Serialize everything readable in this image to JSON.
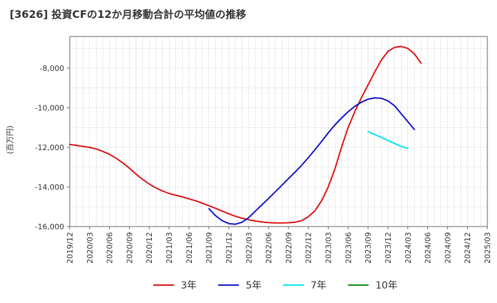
{
  "title": "[3626]  投資CFの12か月移動合計の平均値の推移",
  "chart_data": {
    "type": "line",
    "ylabel": "(百万円)",
    "xlabel": "",
    "ylim": [
      -16000,
      -6400
    ],
    "yticks": [
      -8000,
      -10000,
      -12000,
      -14000,
      -16000
    ],
    "ytick_labels": [
      "-8,000",
      "-10,000",
      "-12,000",
      "-14,000",
      "-16,000"
    ],
    "x_categories": [
      "2019/12",
      "2020/03",
      "2020/06",
      "2020/09",
      "2020/12",
      "2021/03",
      "2021/06",
      "2021/09",
      "2021/12",
      "2022/03",
      "2022/06",
      "2022/09",
      "2022/12",
      "2023/03",
      "2023/06",
      "2023/09",
      "2023/12",
      "2024/03",
      "2024/06",
      "2024/09",
      "2024/12",
      "2025/03"
    ],
    "grid": true,
    "legend_position": "bottom",
    "series": [
      {
        "name": "3年",
        "color": "#dd1111",
        "start_index": 0,
        "values": [
          -11850,
          -11900,
          -11950,
          -12000,
          -12080,
          -12200,
          -12350,
          -12550,
          -12780,
          -13050,
          -13350,
          -13620,
          -13850,
          -14050,
          -14200,
          -14330,
          -14420,
          -14500,
          -14600,
          -14700,
          -14820,
          -14950,
          -15080,
          -15220,
          -15360,
          -15480,
          -15580,
          -15660,
          -15720,
          -15770,
          -15800,
          -15820,
          -15820,
          -15810,
          -15780,
          -15700,
          -15500,
          -15200,
          -14700,
          -14000,
          -13100,
          -12000,
          -11000,
          -10200,
          -9500,
          -8850,
          -8200,
          -7600,
          -7150,
          -6950,
          -6900,
          -7000,
          -7280,
          -7750
        ]
      },
      {
        "name": "5年",
        "color": "#1111cc",
        "start_index": 21,
        "values": [
          -15100,
          -15450,
          -15700,
          -15850,
          -15880,
          -15780,
          -15550,
          -15220,
          -14900,
          -14580,
          -14250,
          -13920,
          -13580,
          -13250,
          -12900,
          -12520,
          -12120,
          -11700,
          -11270,
          -10870,
          -10520,
          -10200,
          -9930,
          -9720,
          -9570,
          -9500,
          -9520,
          -9650,
          -9900,
          -10300,
          -10700,
          -11100
        ]
      },
      {
        "name": "7年",
        "color": "#00e5ee",
        "start_index": 45,
        "values": [
          -11200,
          -11350,
          -11500,
          -11650,
          -11800,
          -11950,
          -12050
        ]
      },
      {
        "name": "10年",
        "color": "#118811",
        "start_index": 0,
        "values": []
      }
    ]
  }
}
